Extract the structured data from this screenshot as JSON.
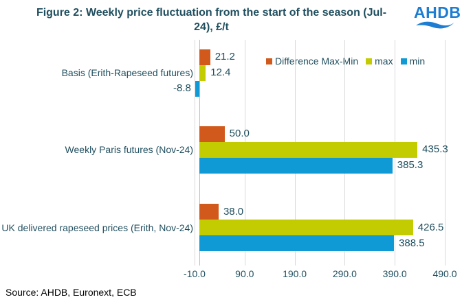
{
  "header": {
    "logo_text": "AHDB"
  },
  "source_note": "Source: AHDB, Euronext, ECB",
  "colors": {
    "background": "#FFFFFF",
    "title_text": "#1F4E5E",
    "axis_text": "#1F4E5E",
    "grid": "#D9D9D9",
    "zero_line": "#BDBDBD",
    "source_text": "#000000",
    "logo_blue": "#1D7DD2"
  },
  "chart_data": {
    "type": "bar",
    "orientation": "horizontal",
    "title": "Figure 2: Weekly price fluctuation from the start of the season (Jul-24), £/t",
    "categories": [
      "Basis (Erith-Rapeseed futures)",
      "Weekly Paris futures (Nov-24)",
      "UK delivered rapeseed prices (Erith, Nov-24)"
    ],
    "series": [
      {
        "name": "Difference Max-Min",
        "key": "difference-max-min",
        "color": "#D2591C",
        "values": [
          21.2,
          50.0,
          38.0
        ]
      },
      {
        "name": "max",
        "key": "max",
        "color": "#C3CC00",
        "values": [
          12.4,
          435.3,
          426.5
        ]
      },
      {
        "name": "min",
        "key": "min",
        "color": "#0F9AD6",
        "values": [
          -8.8,
          385.3,
          388.5
        ]
      }
    ],
    "value_label_decimals": 1,
    "xticks": [
      -10.0,
      90.0,
      190.0,
      290.0,
      390.0,
      490.0
    ],
    "xlim": [
      -10.0,
      490.0
    ],
    "grid": true,
    "legend_position": "top-right-inside",
    "legend_order": [
      "Difference Max-Min",
      "max",
      "min"
    ]
  }
}
